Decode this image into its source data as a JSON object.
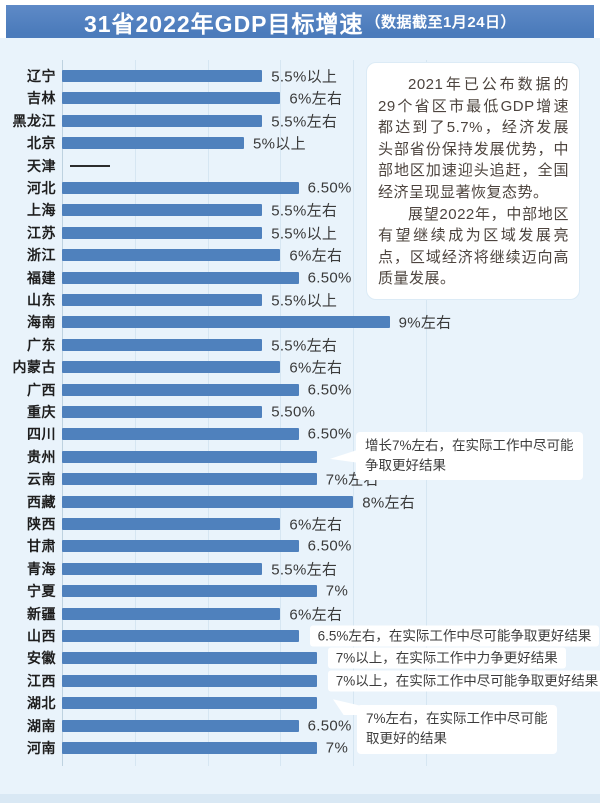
{
  "title": {
    "main": "31省2022年GDP目标增速",
    "sub": "（数据截至1月24日）"
  },
  "info_box": {
    "p1": "2021年已公布数据的29个省区市最低GDP增速都达到了5.7%，经济发展头部省份保持发展优势，中部地区加速迎头追赶，全国经济呈现显著恢复态势。",
    "p2": "展望2022年，中部地区有望继续成为区域发展亮点，区域经济将继续迈向高质量发展。"
  },
  "colors": {
    "title_bar": "#4e80c1",
    "title_border": "#36649f",
    "panel_bg": "#e9f3fb",
    "bar": "#4f81bd",
    "annotation_bg": "#ffffff",
    "text_dark": "#3a3a3a"
  },
  "chart_data": {
    "type": "bar",
    "orientation": "horizontal",
    "unit": "%",
    "title": "31省2022年GDP目标增速（数据截至1月24日）",
    "xlim": [
      0,
      10
    ],
    "gridline_interval": 2,
    "grid": true,
    "bar_color": "#4f81bd",
    "rows": [
      {
        "province": "辽宁",
        "value": 5.5,
        "label": "5.5%以上",
        "type": "plain"
      },
      {
        "province": "吉林",
        "value": 6,
        "label": "6%左右",
        "type": "plain"
      },
      {
        "province": "黑龙江",
        "value": 5.5,
        "label": "5.5%左右",
        "type": "plain"
      },
      {
        "province": "北京",
        "value": 5,
        "label": "5%以上",
        "type": "plain"
      },
      {
        "province": "天津",
        "value": null,
        "label": "——",
        "type": "dash"
      },
      {
        "province": "河北",
        "value": 6.5,
        "label": "6.50%",
        "type": "plain"
      },
      {
        "province": "上海",
        "value": 5.5,
        "label": "5.5%左右",
        "type": "plain"
      },
      {
        "province": "江苏",
        "value": 5.5,
        "label": "5.5%以上",
        "type": "plain"
      },
      {
        "province": "浙江",
        "value": 6,
        "label": "6%左右",
        "type": "plain"
      },
      {
        "province": "福建",
        "value": 6.5,
        "label": "6.50%",
        "type": "plain"
      },
      {
        "province": "山东",
        "value": 5.5,
        "label": "5.5%以上",
        "type": "plain"
      },
      {
        "province": "海南",
        "value": 9,
        "label": "9%左右",
        "type": "plain"
      },
      {
        "province": "广东",
        "value": 5.5,
        "label": "5.5%左右",
        "type": "plain"
      },
      {
        "province": "内蒙古",
        "value": 6,
        "label": "6%左右",
        "type": "plain"
      },
      {
        "province": "广西",
        "value": 6.5,
        "label": "6.50%",
        "type": "plain"
      },
      {
        "province": "重庆",
        "value": 5.5,
        "label": "5.50%",
        "type": "plain"
      },
      {
        "province": "四川",
        "value": 6.5,
        "label": "6.50%",
        "type": "plain"
      },
      {
        "province": "贵州",
        "value": 7,
        "label": "增长7%左右，在实际工作中尽可能争取更好结果",
        "type": "callout",
        "lines": [
          "增长7%左右，在实际工作中尽可能",
          "争取更好结果"
        ],
        "pointer": "left"
      },
      {
        "province": "云南",
        "value": 7,
        "label": "7%左右",
        "type": "plain"
      },
      {
        "province": "西藏",
        "value": 8,
        "label": "8%左右",
        "type": "plain"
      },
      {
        "province": "陕西",
        "value": 6,
        "label": "6%左右",
        "type": "plain"
      },
      {
        "province": "甘肃",
        "value": 6.5,
        "label": "6.50%",
        "type": "plain"
      },
      {
        "province": "青海",
        "value": 5.5,
        "label": "5.5%左右",
        "type": "plain"
      },
      {
        "province": "宁夏",
        "value": 7,
        "label": "7%",
        "type": "plain"
      },
      {
        "province": "新疆",
        "value": 6,
        "label": "6%左右",
        "type": "plain"
      },
      {
        "province": "山西",
        "value": 6.5,
        "label": "6.5%左右，在实际工作中尽可能争取更好结果",
        "type": "box"
      },
      {
        "province": "安徽",
        "value": 7,
        "label": "7%以上，在实际工作中力争更好结果",
        "type": "box"
      },
      {
        "province": "江西",
        "value": 7,
        "label": "7%以上，在实际工作中尽可能争取更好结果",
        "type": "box"
      },
      {
        "province": "湖北",
        "value": 7,
        "label": "7%左右，在实际工作中尽可能取更好的结果",
        "type": "callout",
        "lines": [
          "7%左右，在实际工作中尽可能",
          "取更好的结果"
        ],
        "pointer": "up-left"
      },
      {
        "province": "湖南",
        "value": 6.5,
        "label": "6.50%",
        "type": "plain"
      },
      {
        "province": "河南",
        "value": 7,
        "label": "7%",
        "type": "plain"
      }
    ]
  }
}
